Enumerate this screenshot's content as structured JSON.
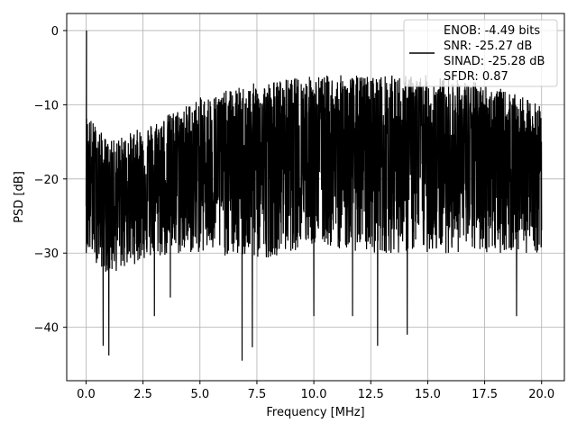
{
  "chart_data": {
    "type": "line",
    "title": "",
    "xlabel": "Frequency [MHz]",
    "ylabel": "PSD [dB]",
    "xlim": [
      -0.85,
      21.0
    ],
    "ylim": [
      -47.2,
      2.3
    ],
    "xticks": [
      0.0,
      2.5,
      5.0,
      7.5,
      10.0,
      12.5,
      15.0,
      17.5,
      20.0
    ],
    "xtick_labels": [
      "0.0",
      "2.5",
      "5.0",
      "7.5",
      "10.0",
      "12.5",
      "15.0",
      "17.5",
      "20.0"
    ],
    "yticks": [
      0,
      -10,
      -20,
      -30,
      -40
    ],
    "ytick_labels": [
      "0",
      "−10",
      "−20",
      "−30",
      "−40"
    ],
    "grid": true,
    "legend": {
      "placement": "top-right",
      "entries": [
        "ENOB: -4.49 bits",
        "SNR: -25.27 dB",
        "SINAD: -25.28 dB",
        "SFDR: 0.87"
      ]
    },
    "series": [
      {
        "color": "#000000",
        "x_range": [
          0.0,
          20.0
        ],
        "peak": {
          "x": 0.02,
          "y": 0.0
        },
        "envelope_approx": {
          "x": [
            0.0,
            1.0,
            2.5,
            5.0,
            7.5,
            10.0,
            12.5,
            15.0,
            17.5,
            20.0
          ],
          "upper": [
            -11,
            -15,
            -13,
            -9,
            -7,
            -6,
            -6,
            -6,
            -7,
            -10
          ],
          "typical": [
            -20,
            -22,
            -20,
            -18,
            -17,
            -16,
            -16,
            -16,
            -17,
            -18
          ],
          "lower": [
            -30,
            -33,
            -31,
            -30,
            -31,
            -29,
            -30,
            -30,
            -30,
            -30
          ]
        },
        "notable_dips": [
          {
            "x": 0.75,
            "y": -42.5
          },
          {
            "x": 1.0,
            "y": -43.8
          },
          {
            "x": 3.0,
            "y": -38.5
          },
          {
            "x": 3.7,
            "y": -36.0
          },
          {
            "x": 6.85,
            "y": -44.5
          },
          {
            "x": 7.3,
            "y": -42.7
          },
          {
            "x": 10.0,
            "y": -38.5
          },
          {
            "x": 11.7,
            "y": -38.5
          },
          {
            "x": 12.8,
            "y": -42.5
          },
          {
            "x": 14.1,
            "y": -41.0
          },
          {
            "x": 18.9,
            "y": -38.5
          }
        ]
      }
    ]
  }
}
